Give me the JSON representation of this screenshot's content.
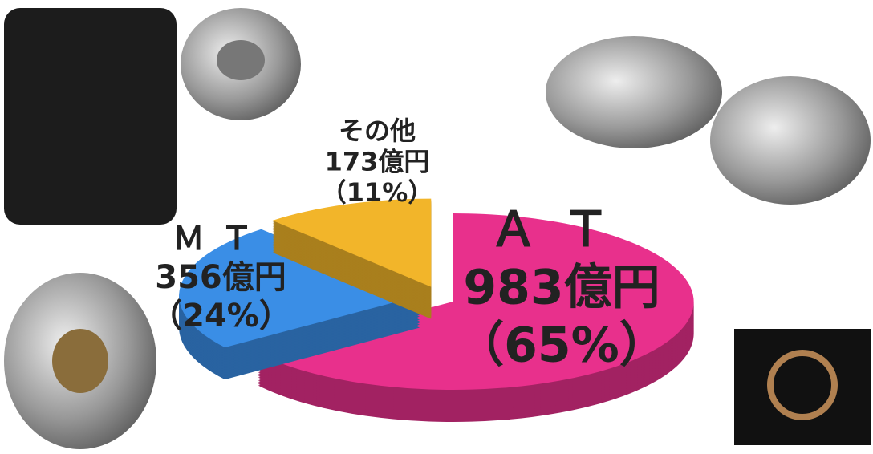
{
  "chart_data": {
    "type": "pie",
    "categories": [
      "ＡＴ",
      "ＭＴ",
      "その他"
    ],
    "values": [
      983,
      356,
      173
    ],
    "value_labels": [
      "983億円",
      "356億円",
      "173億円"
    ],
    "shares": [
      65,
      24,
      11
    ],
    "share_labels": [
      "（65%）",
      "（24%）",
      "（11%）"
    ],
    "colors": [
      "#e8308c",
      "#3a8ee6",
      "#f2b52a"
    ]
  }
}
